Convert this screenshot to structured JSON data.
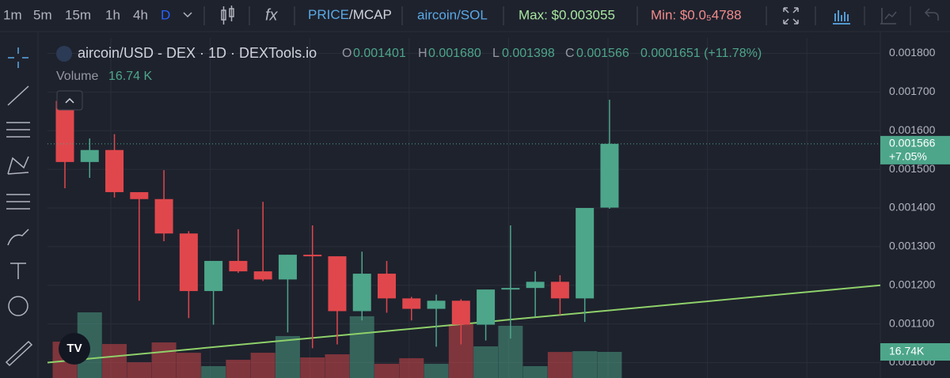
{
  "toolbar": {
    "intervals": [
      "1m",
      "5m",
      "15m",
      "1h",
      "4h",
      "D"
    ],
    "price": "PRICE",
    "mcap": "/MCAP",
    "pair": "aircoin/SOL",
    "max": "Max: $0.003055",
    "min": "Min: $0.0₅4788"
  },
  "chart_data": {
    "type": "candlestick",
    "title": "aircoin/USD - DEX · 1D · DEXTools.io",
    "legend": {
      "o_key": "O",
      "o": "0.001401",
      "h_key": "H",
      "h": "0.001680",
      "l_key": "L",
      "l": "0.001398",
      "c_key": "C",
      "c": "0.001566",
      "change": "0.0001651 (+11.78%)"
    },
    "volume_title": "Volume",
    "volume_legend": "16.74 K",
    "volume_badge": "16.74K",
    "change_label": "+7.05%",
    "categories": [
      null,
      null,
      null,
      null,
      null,
      null,
      null,
      null,
      null,
      null,
      null,
      null,
      null,
      null,
      null,
      null,
      null,
      null,
      null,
      null,
      null,
      null,
      null
    ],
    "open": [
      0.001677,
      0.001519,
      0.00155,
      0.001441,
      0.001423,
      0.001334,
      0.001185,
      0.001263,
      0.001236,
      0.001215,
      0.001279,
      0.001275,
      0.001133,
      0.00123,
      0.001166,
      0.001139,
      0.00116,
      0.001098,
      0.001189,
      0.001193,
      0.001209,
      0.001166,
      0.001401
    ],
    "high": [
      0.001704,
      0.00158,
      0.001591,
      0.001441,
      0.001498,
      0.00134,
      0.001263,
      0.001345,
      0.001416,
      0.001279,
      0.001355,
      0.001275,
      0.001287,
      0.001263,
      0.00117,
      0.001176,
      0.001164,
      0.001189,
      0.001355,
      0.001236,
      0.001226,
      0.0014,
      0.00168
    ],
    "low": [
      0.001451,
      0.001478,
      0.001427,
      0.00116,
      0.001314,
      0.001115,
      0.001098,
      0.001232,
      0.001211,
      0.001078,
      0.001037,
      0.001047,
      0.001109,
      0.001129,
      0.001109,
      0.001041,
      0.001047,
      0.001057,
      0.001062,
      0.001119,
      0.001123,
      0.001105,
      0.001398
    ],
    "close": [
      0.001519,
      0.00155,
      0.001441,
      0.001423,
      0.001334,
      0.001185,
      0.001263,
      0.001236,
      0.001215,
      0.001279,
      0.001275,
      0.001133,
      0.00123,
      0.001166,
      0.001139,
      0.00116,
      0.001098,
      0.001189,
      0.001193,
      0.001209,
      0.001166,
      0.0014,
      0.001566
    ],
    "volume": [
      23300,
      42100,
      21800,
      10100,
      22800,
      16200,
      7600,
      11700,
      16200,
      26900,
      13200,
      15200,
      39600,
      9100,
      12700,
      9100,
      34500,
      20300,
      33500,
      7600,
      16700,
      17200,
      16740
    ],
    "up_color": "#4da68a",
    "down_color": "#e0474c",
    "trendline_color": "#8fd16a",
    "trendline": [
      0.001,
      0.0012
    ],
    "ylim": [
      0.00096,
      0.00184
    ],
    "yticks": [
      {
        "value": 0.0018,
        "label": "0.001800"
      },
      {
        "value": 0.0017,
        "label": "0.001700"
      },
      {
        "value": 0.0016,
        "label": "0.001600"
      },
      {
        "value": 0.0015,
        "label": "0.001500"
      },
      {
        "value": 0.0014,
        "label": "0.001400"
      },
      {
        "value": 0.0013,
        "label": "0.001300"
      },
      {
        "value": 0.0012,
        "label": "0.001200"
      },
      {
        "value": 0.0011,
        "label": "0.001100"
      },
      {
        "value": 0.001,
        "label": "0.001000"
      }
    ],
    "grid": true
  }
}
